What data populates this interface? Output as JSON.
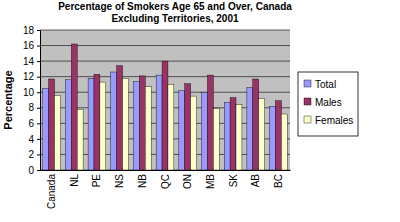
{
  "chart_data": {
    "type": "bar",
    "title": "Percentage of Smokers Age 65 and Over, Canada Excluding Territories, 2001",
    "y_label": "Percentage",
    "categories": [
      "Canada",
      "NL",
      "PE",
      "NS",
      "NB",
      "QC",
      "ON",
      "MB",
      "SK",
      "AB",
      "BC"
    ],
    "series": [
      {
        "name": "Total",
        "color": "#9999ff",
        "values": [
          10.5,
          11.6,
          11.8,
          12.6,
          11.4,
          12.2,
          10.2,
          10.0,
          8.7,
          10.6,
          8.2
        ]
      },
      {
        "name": "Males",
        "color": "#993366",
        "values": [
          11.7,
          16.2,
          12.3,
          13.4,
          12.1,
          14.0,
          11.1,
          12.2,
          9.3,
          11.7,
          8.9
        ]
      },
      {
        "name": "Females",
        "color": "#ffffcc",
        "values": [
          9.6,
          7.8,
          11.3,
          11.8,
          10.7,
          11.0,
          9.5,
          7.9,
          8.4,
          9.2,
          7.2
        ]
      }
    ],
    "ylim": [
      0,
      18
    ],
    "yticks": [
      0,
      2,
      4,
      6,
      8,
      10,
      12,
      14,
      16,
      18
    ],
    "grid": true,
    "legend": "right"
  }
}
